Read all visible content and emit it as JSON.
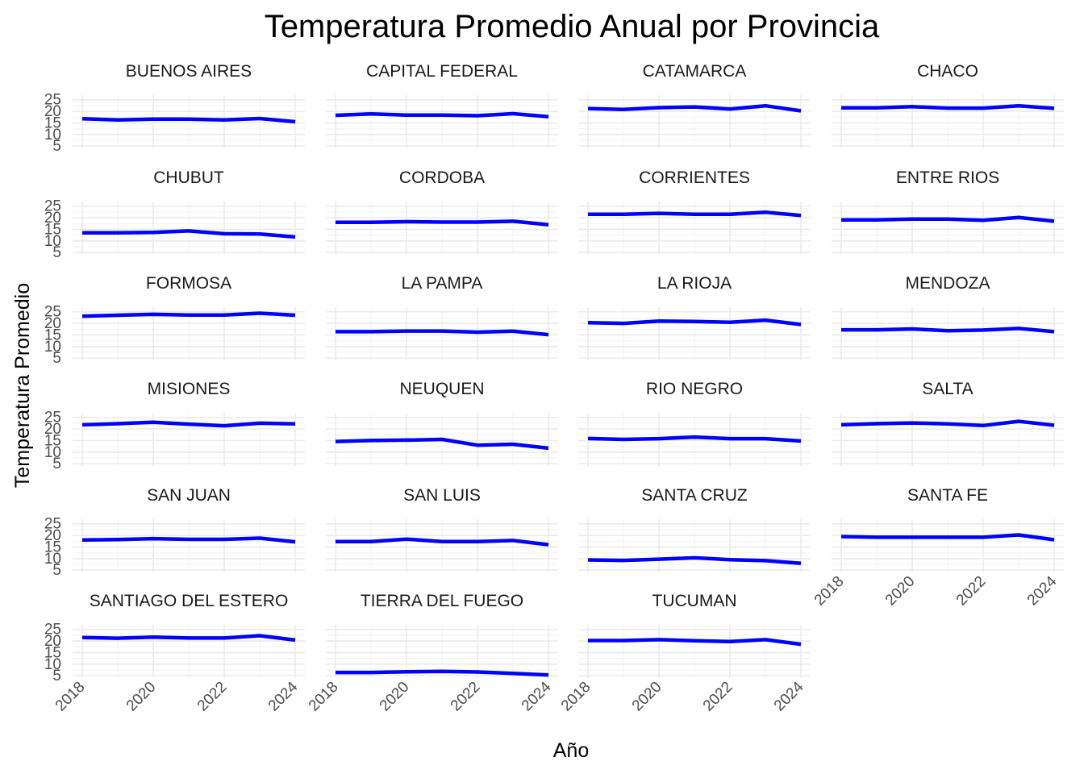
{
  "chart_data": {
    "type": "line",
    "title": "Temperatura Promedio Anual por Provincia",
    "xlabel": "Año",
    "ylabel": "Temperatura Promedio",
    "x": [
      2018,
      2019,
      2020,
      2021,
      2022,
      2023,
      2024
    ],
    "x_tick_labels": [
      "2018",
      "2020",
      "2022",
      "2024"
    ],
    "y_tick_labels": [
      "5",
      "10",
      "15",
      "20",
      "25"
    ],
    "ylim": [
      4,
      27
    ],
    "grid": true,
    "line_color": "#0000ff",
    "grid_color": "#ebebeb",
    "facets": [
      {
        "name": "BUENOS AIRES",
        "values": [
          16.8,
          16.3,
          16.6,
          16.6,
          16.3,
          16.9,
          15.5
        ]
      },
      {
        "name": "CAPITAL FEDERAL",
        "values": [
          18.3,
          18.9,
          18.4,
          18.4,
          18.1,
          19.0,
          17.7
        ]
      },
      {
        "name": "CATAMARCA",
        "values": [
          21.2,
          20.8,
          21.6,
          21.9,
          21.0,
          22.4,
          20.2
        ]
      },
      {
        "name": "CHACO",
        "values": [
          21.5,
          21.5,
          22.0,
          21.4,
          21.4,
          22.4,
          21.3
        ]
      },
      {
        "name": "CHUBUT",
        "values": [
          13.5,
          13.5,
          13.7,
          14.3,
          13.1,
          13.0,
          11.7
        ]
      },
      {
        "name": "CORDOBA",
        "values": [
          18.0,
          18.0,
          18.3,
          18.1,
          18.1,
          18.5,
          17.0
        ]
      },
      {
        "name": "CORRIENTES",
        "values": [
          21.5,
          21.5,
          21.9,
          21.5,
          21.5,
          22.4,
          21.0
        ]
      },
      {
        "name": "ENTRE RIOS",
        "values": [
          19.1,
          19.1,
          19.4,
          19.4,
          18.9,
          20.1,
          18.5
        ]
      },
      {
        "name": "FORMOSA",
        "values": [
          23.1,
          23.5,
          23.9,
          23.6,
          23.6,
          24.4,
          23.5
        ]
      },
      {
        "name": "LA PAMPA",
        "values": [
          16.4,
          16.4,
          16.7,
          16.7,
          16.2,
          16.6,
          15.1
        ]
      },
      {
        "name": "LA RIOJA",
        "values": [
          20.3,
          20.0,
          21.0,
          20.8,
          20.5,
          21.4,
          19.5
        ]
      },
      {
        "name": "MENDOZA",
        "values": [
          17.2,
          17.2,
          17.6,
          16.8,
          17.1,
          17.8,
          16.4
        ]
      },
      {
        "name": "MISIONES",
        "values": [
          21.8,
          22.3,
          22.9,
          22.1,
          21.4,
          22.5,
          22.2
        ]
      },
      {
        "name": "NEUQUEN",
        "values": [
          14.6,
          15.0,
          15.2,
          15.5,
          13.0,
          13.4,
          11.7
        ]
      },
      {
        "name": "RIO NEGRO",
        "values": [
          15.9,
          15.5,
          15.8,
          16.5,
          15.8,
          15.8,
          14.8
        ]
      },
      {
        "name": "SALTA",
        "values": [
          21.8,
          22.3,
          22.6,
          22.2,
          21.5,
          23.3,
          21.6
        ]
      },
      {
        "name": "SAN JUAN",
        "values": [
          18.0,
          18.2,
          18.6,
          18.3,
          18.3,
          18.8,
          17.2
        ]
      },
      {
        "name": "SAN LUIS",
        "values": [
          17.3,
          17.3,
          18.4,
          17.3,
          17.3,
          17.8,
          16.0
        ]
      },
      {
        "name": "SANTA CRUZ",
        "values": [
          9.4,
          9.2,
          9.7,
          10.3,
          9.5,
          9.1,
          7.9
        ]
      },
      {
        "name": "SANTA FE",
        "values": [
          19.5,
          19.2,
          19.2,
          19.2,
          19.2,
          20.2,
          18.1
        ]
      },
      {
        "name": "SANTIAGO DEL ESTERO",
        "values": [
          21.5,
          21.2,
          21.7,
          21.3,
          21.3,
          22.3,
          20.4
        ]
      },
      {
        "name": "TIERRA DEL FUEGO",
        "values": [
          6.4,
          6.4,
          6.7,
          6.9,
          6.6,
          6.0,
          5.3
        ]
      },
      {
        "name": "TUCUMAN",
        "values": [
          20.2,
          20.2,
          20.6,
          20.1,
          19.8,
          20.6,
          18.6
        ]
      }
    ]
  }
}
